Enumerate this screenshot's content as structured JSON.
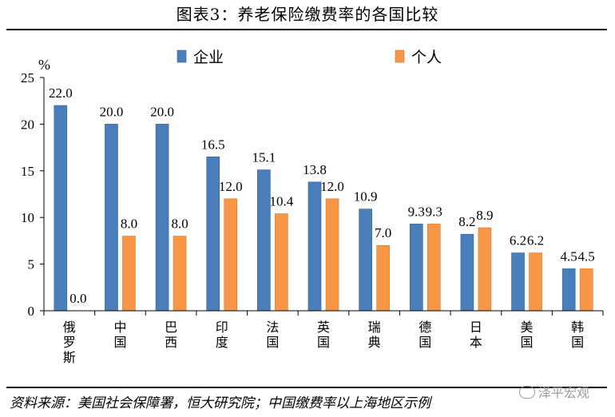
{
  "title": "图表3：养老保险缴费率的各国比较",
  "source": "资料来源：美国社会保障署，恒大研究院；中国缴费率以上海地区示例",
  "watermark": "泽平宏观",
  "colors": {
    "enterprise": "#4a7ebb",
    "individual": "#f79646"
  },
  "chart_data": {
    "type": "bar",
    "title": "图表3：养老保险缴费率的各国比较",
    "ylabel": "%",
    "xlabel": "",
    "ylim": [
      0,
      25
    ],
    "yticks": [
      0,
      5,
      10,
      15,
      20,
      25
    ],
    "grid": false,
    "legend": "top",
    "categories": [
      "俄罗斯",
      "中国",
      "巴西",
      "印度",
      "法国",
      "英国",
      "瑞典",
      "德国",
      "日本",
      "美国",
      "韩国"
    ],
    "series": [
      {
        "name": "企业",
        "values": [
          22.0,
          20.0,
          20.0,
          16.5,
          15.1,
          13.8,
          10.9,
          9.3,
          8.2,
          6.2,
          4.5
        ]
      },
      {
        "name": "个人",
        "values": [
          0.0,
          8.0,
          8.0,
          12.0,
          10.4,
          12.0,
          7.0,
          9.3,
          8.9,
          6.2,
          4.5
        ]
      }
    ]
  }
}
